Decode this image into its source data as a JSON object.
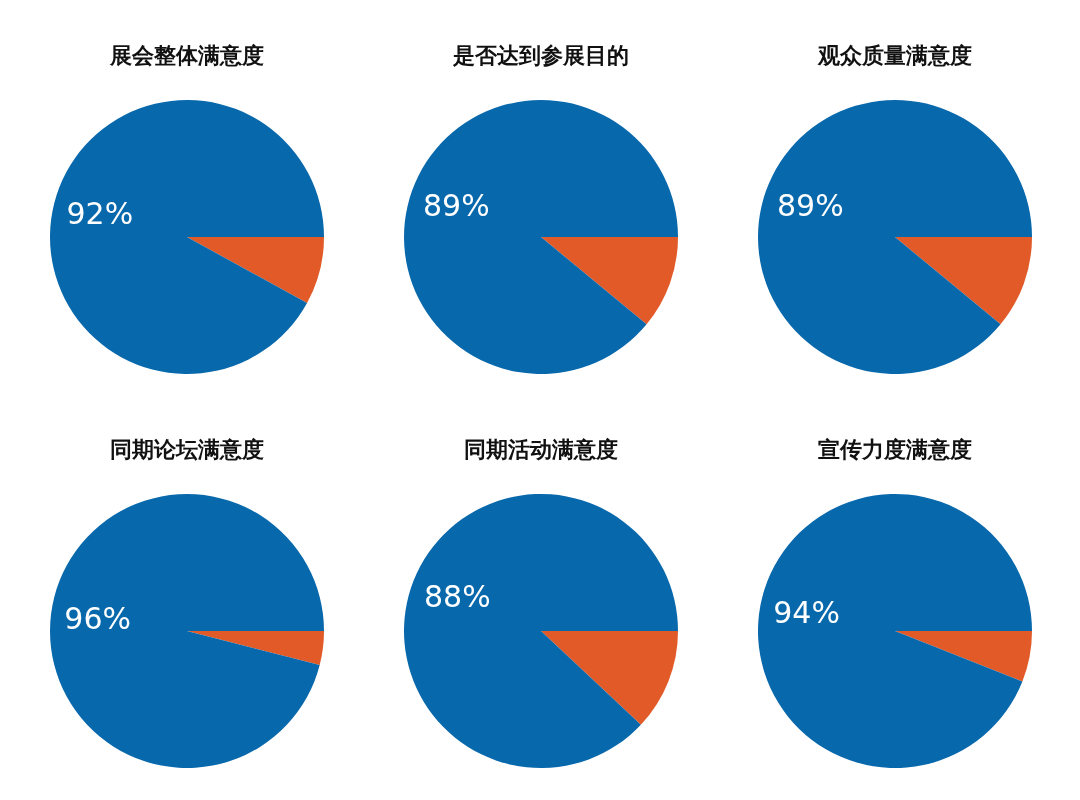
{
  "chart_data": [
    {
      "type": "pie",
      "title": "展会整体满意度",
      "categories": [
        null,
        null
      ],
      "values": [
        8,
        92
      ],
      "colors": [
        "#e15a27",
        "#0868ac"
      ],
      "value_labels": [
        null,
        "92%"
      ]
    },
    {
      "type": "pie",
      "title": "是否达到参展目的",
      "categories": [
        null,
        null
      ],
      "values": [
        11,
        89
      ],
      "colors": [
        "#e15a27",
        "#0868ac"
      ],
      "value_labels": [
        null,
        "89%"
      ]
    },
    {
      "type": "pie",
      "title": "观众质量满意度",
      "categories": [
        null,
        null
      ],
      "values": [
        11,
        89
      ],
      "colors": [
        "#e15a27",
        "#0868ac"
      ],
      "value_labels": [
        null,
        "89%"
      ]
    },
    {
      "type": "pie",
      "title": "同期论坛满意度",
      "categories": [
        null,
        null
      ],
      "values": [
        4,
        96
      ],
      "colors": [
        "#e15a27",
        "#0868ac"
      ],
      "value_labels": [
        null,
        "96%"
      ]
    },
    {
      "type": "pie",
      "title": "同期活动满意度",
      "categories": [
        null,
        null
      ],
      "values": [
        12,
        88
      ],
      "colors": [
        "#e15a27",
        "#0868ac"
      ],
      "value_labels": [
        null,
        "88%"
      ]
    },
    {
      "type": "pie",
      "title": "宣传力度满意度",
      "categories": [
        null,
        null
      ],
      "values": [
        6,
        94
      ],
      "colors": [
        "#e15a27",
        "#0868ac"
      ],
      "value_labels": [
        null,
        "94%"
      ]
    }
  ]
}
